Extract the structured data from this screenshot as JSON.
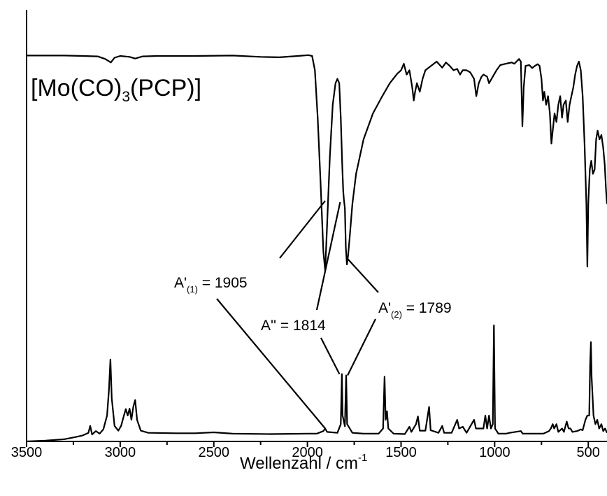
{
  "chart_data": {
    "type": "line",
    "compound_label": {
      "pre": "[Mo(CO)",
      "sub": "3",
      "post": "(PCP)]"
    },
    "xlabel": {
      "text": "Wellenzahl / cm",
      "sup": "-1"
    },
    "ylabel": "",
    "xlim": [
      3500,
      400
    ],
    "x_reversed": true,
    "x_ticks": [
      "3500",
      "3000",
      "2500",
      "2000",
      "1500",
      "1000",
      "500"
    ],
    "x_tick_values": [
      3500,
      3000,
      2500,
      2000,
      1500,
      1000,
      500
    ],
    "ylim": [
      0,
      1
    ],
    "y_ticks_shown": false,
    "grid": false,
    "series": [
      {
        "role": "experimental IR spectrum (top, transmission)",
        "color": "#000000",
        "points": [
          [
            3500,
            0.894
          ],
          [
            3300,
            0.894
          ],
          [
            3200,
            0.893
          ],
          [
            3120,
            0.892
          ],
          [
            3080,
            0.886
          ],
          [
            3050,
            0.878
          ],
          [
            3030,
            0.889
          ],
          [
            3000,
            0.893
          ],
          [
            2950,
            0.891
          ],
          [
            2920,
            0.887
          ],
          [
            2880,
            0.892
          ],
          [
            2800,
            0.893
          ],
          [
            2600,
            0.893
          ],
          [
            2400,
            0.894
          ],
          [
            2250,
            0.891
          ],
          [
            2150,
            0.89
          ],
          [
            2050,
            0.893
          ],
          [
            1995,
            0.895
          ],
          [
            1975,
            0.893
          ],
          [
            1960,
            0.86
          ],
          [
            1945,
            0.75
          ],
          [
            1930,
            0.6
          ],
          [
            1915,
            0.44
          ],
          [
            1905,
            0.396
          ],
          [
            1895,
            0.5
          ],
          [
            1880,
            0.66
          ],
          [
            1865,
            0.78
          ],
          [
            1850,
            0.83
          ],
          [
            1840,
            0.84
          ],
          [
            1830,
            0.83
          ],
          [
            1822,
            0.75
          ],
          [
            1814,
            0.64
          ],
          [
            1809,
            0.58
          ],
          [
            1805,
            0.56
          ],
          [
            1800,
            0.54
          ],
          [
            1795,
            0.45
          ],
          [
            1789,
            0.41
          ],
          [
            1783,
            0.43
          ],
          [
            1775,
            0.47
          ],
          [
            1760,
            0.55
          ],
          [
            1740,
            0.62
          ],
          [
            1700,
            0.7
          ],
          [
            1650,
            0.76
          ],
          [
            1600,
            0.8
          ],
          [
            1560,
            0.83
          ],
          [
            1520,
            0.852
          ],
          [
            1500,
            0.86
          ],
          [
            1485,
            0.875
          ],
          [
            1470,
            0.85
          ],
          [
            1455,
            0.86
          ],
          [
            1440,
            0.82
          ],
          [
            1432,
            0.79
          ],
          [
            1425,
            0.81
          ],
          [
            1415,
            0.83
          ],
          [
            1400,
            0.81
          ],
          [
            1385,
            0.84
          ],
          [
            1370,
            0.86
          ],
          [
            1340,
            0.87
          ],
          [
            1310,
            0.88
          ],
          [
            1280,
            0.866
          ],
          [
            1260,
            0.878
          ],
          [
            1240,
            0.87
          ],
          [
            1220,
            0.86
          ],
          [
            1200,
            0.863
          ],
          [
            1185,
            0.85
          ],
          [
            1170,
            0.86
          ],
          [
            1150,
            0.86
          ],
          [
            1130,
            0.855
          ],
          [
            1110,
            0.84
          ],
          [
            1098,
            0.8
          ],
          [
            1085,
            0.83
          ],
          [
            1070,
            0.845
          ],
          [
            1060,
            0.85
          ],
          [
            1040,
            0.845
          ],
          [
            1030,
            0.83
          ],
          [
            1010,
            0.845
          ],
          [
            990,
            0.86
          ],
          [
            970,
            0.872
          ],
          [
            950,
            0.874
          ],
          [
            930,
            0.876
          ],
          [
            910,
            0.878
          ],
          [
            895,
            0.875
          ],
          [
            870,
            0.886
          ],
          [
            860,
            0.88
          ],
          [
            852,
            0.73
          ],
          [
            845,
            0.82
          ],
          [
            835,
            0.87
          ],
          [
            815,
            0.872
          ],
          [
            800,
            0.865
          ],
          [
            785,
            0.87
          ],
          [
            770,
            0.874
          ],
          [
            760,
            0.87
          ],
          [
            750,
            0.84
          ],
          [
            742,
            0.79
          ],
          [
            735,
            0.81
          ],
          [
            725,
            0.78
          ],
          [
            715,
            0.8
          ],
          [
            705,
            0.76
          ],
          [
            697,
            0.69
          ],
          [
            690,
            0.72
          ],
          [
            680,
            0.76
          ],
          [
            670,
            0.74
          ],
          [
            660,
            0.78
          ],
          [
            650,
            0.8
          ],
          [
            640,
            0.75
          ],
          [
            632,
            0.78
          ],
          [
            620,
            0.79
          ],
          [
            610,
            0.74
          ],
          [
            600,
            0.78
          ],
          [
            590,
            0.8
          ],
          [
            580,
            0.82
          ],
          [
            570,
            0.85
          ],
          [
            560,
            0.87
          ],
          [
            550,
            0.88
          ],
          [
            540,
            0.86
          ],
          [
            530,
            0.8
          ],
          [
            520,
            0.69
          ],
          [
            510,
            0.55
          ],
          [
            505,
            0.405
          ],
          [
            500,
            0.55
          ],
          [
            492,
            0.63
          ],
          [
            484,
            0.65
          ],
          [
            475,
            0.62
          ],
          [
            466,
            0.63
          ],
          [
            458,
            0.7
          ],
          [
            450,
            0.72
          ],
          [
            440,
            0.7
          ],
          [
            430,
            0.71
          ],
          [
            420,
            0.68
          ],
          [
            412,
            0.64
          ],
          [
            405,
            0.58
          ],
          [
            400,
            0.55
          ]
        ]
      },
      {
        "role": "calculated spectrum (bottom, stick/peak)",
        "color": "#000000",
        "points": [
          [
            3500,
            0.0
          ],
          [
            3400,
            0.002
          ],
          [
            3300,
            0.005
          ],
          [
            3240,
            0.01
          ],
          [
            3200,
            0.014
          ],
          [
            3170,
            0.02
          ],
          [
            3160,
            0.036
          ],
          [
            3150,
            0.016
          ],
          [
            3130,
            0.024
          ],
          [
            3110,
            0.018
          ],
          [
            3090,
            0.028
          ],
          [
            3070,
            0.06
          ],
          [
            3060,
            0.12
          ],
          [
            3052,
            0.19
          ],
          [
            3045,
            0.1
          ],
          [
            3030,
            0.036
          ],
          [
            3010,
            0.025
          ],
          [
            2995,
            0.036
          ],
          [
            2980,
            0.06
          ],
          [
            2970,
            0.075
          ],
          [
            2960,
            0.06
          ],
          [
            2950,
            0.076
          ],
          [
            2940,
            0.05
          ],
          [
            2930,
            0.08
          ],
          [
            2920,
            0.096
          ],
          [
            2910,
            0.05
          ],
          [
            2890,
            0.025
          ],
          [
            2850,
            0.02
          ],
          [
            2700,
            0.019
          ],
          [
            2600,
            0.019
          ],
          [
            2500,
            0.021
          ],
          [
            2400,
            0.018
          ],
          [
            2200,
            0.017
          ],
          [
            2000,
            0.018
          ],
          [
            1950,
            0.018
          ],
          [
            1915,
            0.024
          ],
          [
            1905,
            0.03
          ],
          [
            1895,
            0.022
          ],
          [
            1840,
            0.02
          ],
          [
            1822,
            0.04
          ],
          [
            1816,
            0.156
          ],
          [
            1812,
            0.06
          ],
          [
            1800,
            0.035
          ],
          [
            1793,
            0.153
          ],
          [
            1788,
            0.04
          ],
          [
            1760,
            0.02
          ],
          [
            1700,
            0.018
          ],
          [
            1620,
            0.018
          ],
          [
            1596,
            0.03
          ],
          [
            1588,
            0.15
          ],
          [
            1582,
            0.05
          ],
          [
            1575,
            0.07
          ],
          [
            1568,
            0.03
          ],
          [
            1540,
            0.018
          ],
          [
            1480,
            0.017
          ],
          [
            1455,
            0.034
          ],
          [
            1445,
            0.022
          ],
          [
            1420,
            0.04
          ],
          [
            1410,
            0.058
          ],
          [
            1400,
            0.025
          ],
          [
            1370,
            0.025
          ],
          [
            1350,
            0.08
          ],
          [
            1342,
            0.026
          ],
          [
            1300,
            0.02
          ],
          [
            1280,
            0.036
          ],
          [
            1270,
            0.02
          ],
          [
            1230,
            0.02
          ],
          [
            1200,
            0.05
          ],
          [
            1190,
            0.03
          ],
          [
            1170,
            0.034
          ],
          [
            1150,
            0.02
          ],
          [
            1110,
            0.05
          ],
          [
            1100,
            0.03
          ],
          [
            1060,
            0.03
          ],
          [
            1050,
            0.06
          ],
          [
            1040,
            0.03
          ],
          [
            1030,
            0.06
          ],
          [
            1020,
            0.03
          ],
          [
            1010,
            0.04
          ],
          [
            1004,
            0.269
          ],
          [
            998,
            0.03
          ],
          [
            980,
            0.018
          ],
          [
            940,
            0.018
          ],
          [
            920,
            0.02
          ],
          [
            860,
            0.024
          ],
          [
            850,
            0.018
          ],
          [
            800,
            0.018
          ],
          [
            740,
            0.018
          ],
          [
            710,
            0.024
          ],
          [
            700,
            0.03
          ],
          [
            690,
            0.04
          ],
          [
            682,
            0.03
          ],
          [
            670,
            0.04
          ],
          [
            660,
            0.022
          ],
          [
            640,
            0.03
          ],
          [
            630,
            0.022
          ],
          [
            615,
            0.046
          ],
          [
            605,
            0.03
          ],
          [
            595,
            0.03
          ],
          [
            585,
            0.022
          ],
          [
            560,
            0.024
          ],
          [
            540,
            0.028
          ],
          [
            530,
            0.026
          ],
          [
            515,
            0.05
          ],
          [
            505,
            0.06
          ],
          [
            495,
            0.06
          ],
          [
            490,
            0.18
          ],
          [
            486,
            0.23
          ],
          [
            482,
            0.15
          ],
          [
            472,
            0.06
          ],
          [
            462,
            0.04
          ],
          [
            452,
            0.05
          ],
          [
            442,
            0.03
          ],
          [
            430,
            0.04
          ],
          [
            420,
            0.024
          ],
          [
            410,
            0.03
          ],
          [
            400,
            0.02
          ]
        ]
      }
    ],
    "annotations": [
      {
        "label_pre": "A'",
        "label_sub": "(1)",
        "label_post": " = 1905",
        "wavenumber": 1905
      },
      {
        "label_pre": "A''",
        "label_sub": "",
        "label_post": " = 1814",
        "wavenumber": 1814
      },
      {
        "label_pre": "A'",
        "label_sub": "(2)",
        "label_post": " = 1789",
        "wavenumber": 1789
      }
    ]
  }
}
